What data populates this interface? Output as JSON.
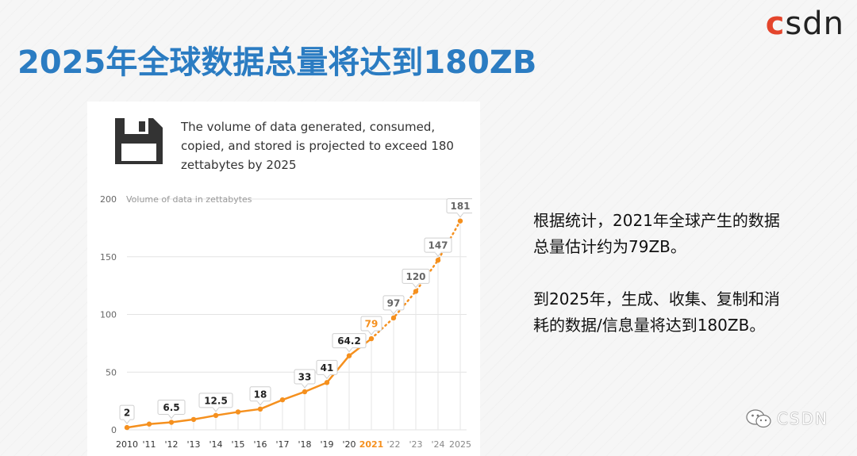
{
  "brand": "csdn",
  "title": "2025年全球数据总量将达到180ZB",
  "caption": "The volume of data generated, consumed, copied, and stored is projected to exceed 180 zettabytes by 2025",
  "side_text": {
    "p1": "根据统计，2021年全球产生的数据总量估计约为79ZB。",
    "p2": "到2025年，生成、收集、复制和消耗的数据/信息量将达到180ZB。"
  },
  "watermark": "CSDN",
  "colors": {
    "title": "#2b7cc2",
    "line": "#f5901e",
    "highlight": "#f5901e"
  },
  "chart_data": {
    "type": "line",
    "title": "Volume of data in zettabytes",
    "xlabel": "",
    "ylabel": "",
    "ylim": [
      0,
      200
    ],
    "yticks": [
      "0",
      "50",
      "100",
      "150",
      "200"
    ],
    "categories": [
      "2010",
      "'11",
      "'12",
      "'13",
      "'14",
      "'15",
      "'16",
      "'17",
      "'18",
      "'19",
      "'20",
      "2021",
      "'22",
      "'23",
      "'24",
      "2025"
    ],
    "values": [
      2,
      5,
      6.5,
      9,
      12.5,
      15.5,
      18,
      26,
      33,
      41,
      64.2,
      79,
      97,
      120,
      147,
      181
    ],
    "labels": [
      "2",
      "",
      "6.5",
      "",
      "12.5",
      "",
      "18",
      "",
      "33",
      "41",
      "64.2",
      "79",
      "97",
      "120",
      "147",
      "181"
    ],
    "highlight_index": 11,
    "projected_from_index": 11
  }
}
